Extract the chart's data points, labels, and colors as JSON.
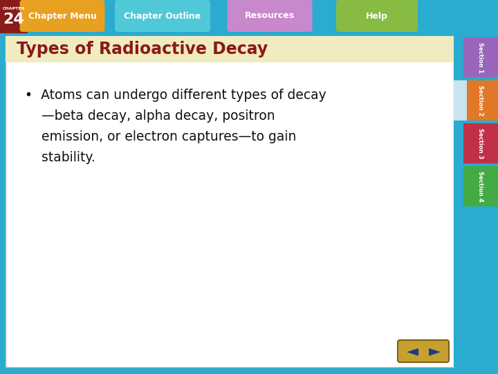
{
  "title": "Types of Radioactive Decay",
  "title_color": "#8B1A1A",
  "bullet_line1": "•  Atoms can undergo different types of decay",
  "bullet_line2": "    —beta decay, alpha decay, positron",
  "bullet_line3": "    emission, or electron captures—to gain",
  "bullet_line4": "    stability.",
  "bg_color": "#FFFFFF",
  "outer_bg_color": "#2AABCF",
  "chapter_box_color": "#8B1A1A",
  "chapter_num": "24",
  "chapter_label": "CHAPTER",
  "nav_items": [
    "Chapter Menu",
    "Chapter Outline",
    "Resources",
    "Help"
  ],
  "nav_colors": [
    "#E8A020",
    "#50C8D8",
    "#C888CC",
    "#88BB44"
  ],
  "section_colors": [
    "#9966BB",
    "#E07828",
    "#C03048",
    "#44AA44"
  ],
  "section_labels": [
    "Section 1",
    "Section 2",
    "Section 3",
    "Section 4"
  ],
  "title_bar_color": "#F0ECC0",
  "slide_border_color": "#BBBBBB",
  "arrow_bg_color": "#C8A030",
  "arrow_fg_color": "#1A3A8A",
  "sec2_highlight_color": "#C8E4EE"
}
